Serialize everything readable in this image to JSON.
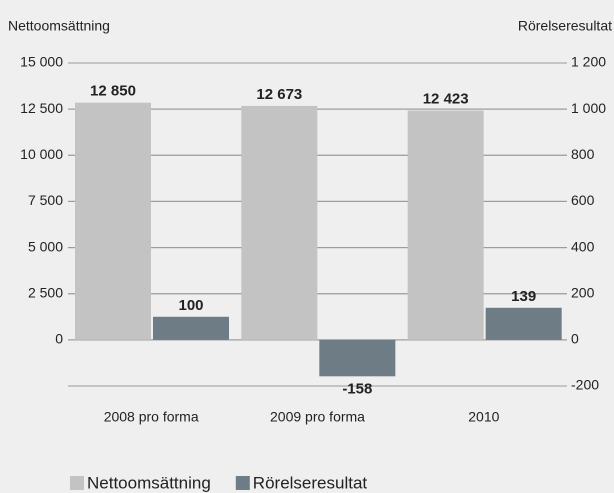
{
  "chart_data": {
    "type": "bar",
    "y_label": "Nettoomsättning",
    "y2_label": "Rörelseresultat",
    "categories": [
      "2008 pro forma",
      "2009 pro forma",
      "2010"
    ],
    "series": [
      {
        "name": "Nettoomsättning",
        "color": "#c3c3c3",
        "values": [
          12850,
          12673,
          12423
        ],
        "value_labels": [
          "12 850",
          "12 673",
          "12 423"
        ]
      },
      {
        "name": "Rörelseresultat",
        "color": "#6e7d85",
        "axis": "y2",
        "values": [
          100,
          -158,
          139
        ]
      }
    ],
    "ylim": [
      -2500,
      15000
    ],
    "yticks": [
      0,
      {
        "value": 2500,
        "label": "2 500"
      },
      {
        "value": 5000,
        "label": "5 000"
      },
      {
        "value": 7500,
        "label": "7 500"
      },
      {
        "value": 10000,
        "label": "10 000"
      },
      {
        "value": 12500,
        "label": "12 500"
      },
      {
        "value": 15000,
        "label": "15 000"
      }
    ],
    "y2lim": [
      -200,
      1200
    ],
    "y2ticks": [
      -200,
      0,
      200,
      400,
      600,
      800,
      {
        "value": 1000,
        "label": "1 000"
      },
      {
        "value": 1200,
        "label": "1 200"
      }
    ],
    "grid": true,
    "legend": "bottom"
  }
}
